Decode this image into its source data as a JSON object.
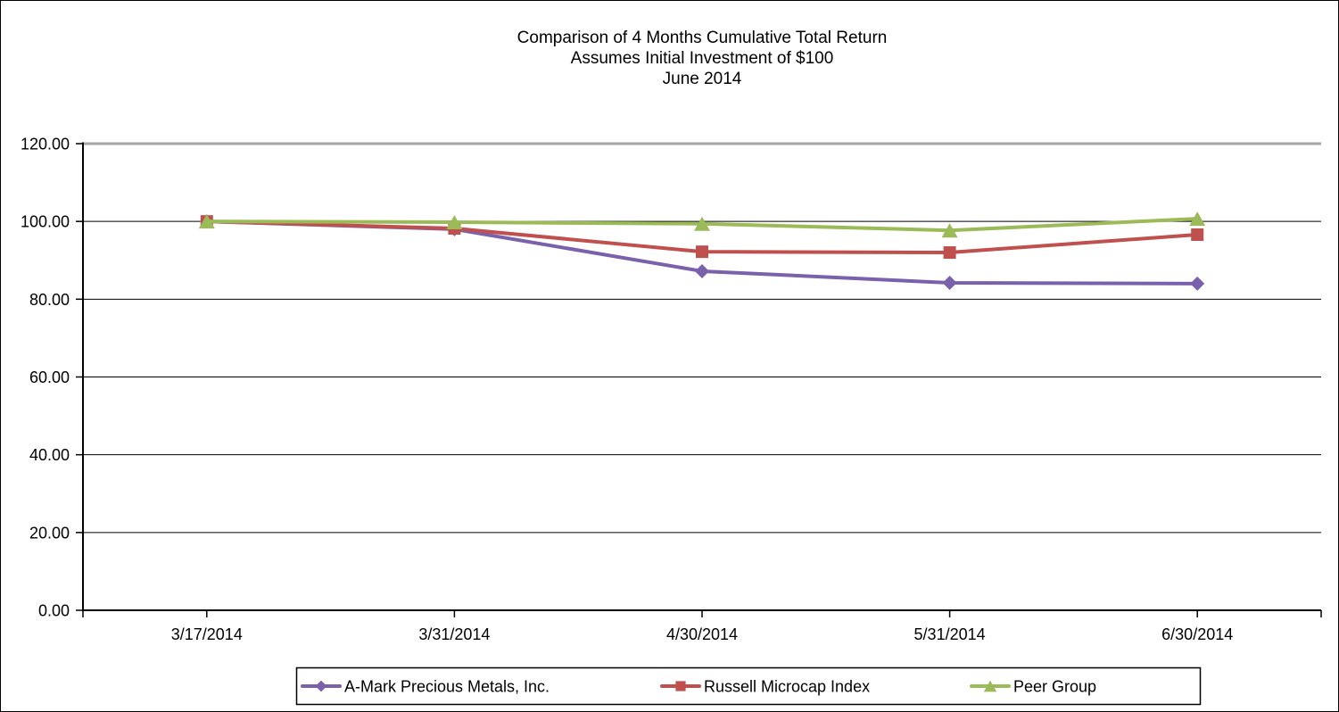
{
  "title": {
    "line1": "Comparison of 4 Months Cumulative Total Return",
    "line2": "Assumes Initial Investment of $100",
    "line3": "June 2014"
  },
  "chart_data": {
    "type": "line",
    "title": "Comparison of 4 Months Cumulative Total Return — Assumes Initial Investment of $100 — June 2014",
    "categories": [
      "3/17/2014",
      "3/31/2014",
      "4/30/2014",
      "5/31/2014",
      "6/30/2014"
    ],
    "series": [
      {
        "name": "A-Mark Precious Metals, Inc.",
        "marker": "diamond",
        "color": "#7A61AB",
        "values": [
          100.0,
          98.0,
          87.2,
          84.2,
          84.0
        ]
      },
      {
        "name": "Russell Microcap Index",
        "marker": "square",
        "color": "#C0504D",
        "values": [
          100.0,
          98.2,
          92.2,
          92.0,
          96.6
        ]
      },
      {
        "name": "Peer Group",
        "marker": "triangle",
        "color": "#9BBB59",
        "values": [
          100.0,
          99.8,
          99.4,
          97.7,
          100.7
        ]
      }
    ],
    "xlabel": "",
    "ylabel": "",
    "ylim": [
      0,
      120
    ],
    "ytick_step": 20,
    "ytick_labels": [
      "0.00",
      "20.00",
      "40.00",
      "60.00",
      "80.00",
      "100.00",
      "120.00"
    ],
    "grid": "horizontal",
    "gridline_color": "#000000",
    "top_gridline_color": "#A6A6A6",
    "axis_color": "#000000",
    "legend_position": "bottom"
  }
}
